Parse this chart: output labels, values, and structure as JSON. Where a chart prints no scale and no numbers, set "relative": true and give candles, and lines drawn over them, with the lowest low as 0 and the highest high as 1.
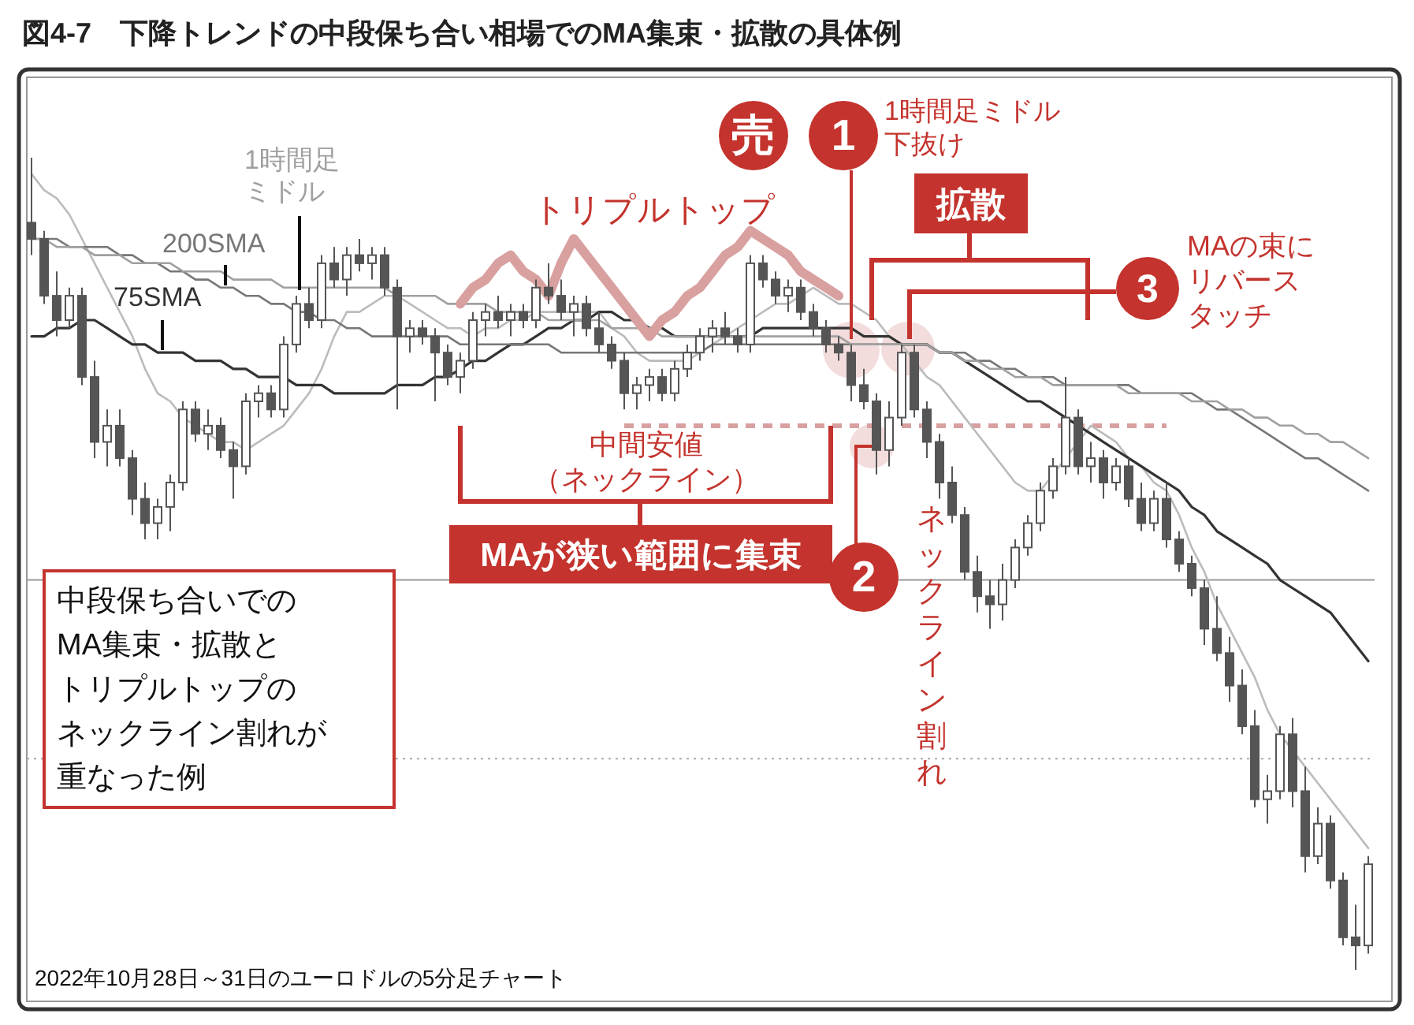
{
  "chart_data": {
    "type": "candlestick",
    "relative": true,
    "title": "図4-7　下降トレンドの中段保ち合い相場でのMA集束・拡散の具体例",
    "color": "#555555",
    "categories": [
      null,
      null,
      null,
      null,
      null,
      null,
      null,
      null,
      null,
      null,
      null,
      null,
      null,
      null,
      null,
      null,
      null,
      null,
      null,
      null,
      null,
      null,
      null,
      null,
      null,
      null,
      null,
      null,
      null,
      null,
      null,
      null,
      null,
      null,
      null,
      null,
      null,
      null,
      null,
      null,
      null,
      null,
      null,
      null,
      null,
      null,
      null,
      null,
      null,
      null,
      null,
      null,
      null,
      null,
      null,
      null,
      null,
      null,
      null,
      null,
      null,
      null,
      null,
      null,
      null,
      null,
      null,
      null,
      null,
      null,
      null,
      null,
      null,
      null,
      null,
      null,
      null,
      null,
      null,
      null,
      null,
      null,
      null,
      null,
      null,
      null,
      null,
      null,
      null,
      null,
      null,
      null,
      null,
      null,
      null,
      null,
      null,
      null,
      null,
      null,
      null,
      null,
      null,
      null,
      null,
      null,
      null
    ],
    "ohlc": [
      [
        0.92,
        1.0,
        0.88,
        0.9
      ],
      [
        0.9,
        0.91,
        0.82,
        0.83
      ],
      [
        0.83,
        0.86,
        0.78,
        0.8
      ],
      [
        0.8,
        0.84,
        0.79,
        0.83
      ],
      [
        0.83,
        0.84,
        0.72,
        0.73
      ],
      [
        0.73,
        0.75,
        0.63,
        0.65
      ],
      [
        0.65,
        0.69,
        0.62,
        0.67
      ],
      [
        0.67,
        0.69,
        0.62,
        0.63
      ],
      [
        0.63,
        0.64,
        0.56,
        0.58
      ],
      [
        0.58,
        0.6,
        0.53,
        0.55
      ],
      [
        0.55,
        0.58,
        0.53,
        0.57
      ],
      [
        0.57,
        0.61,
        0.54,
        0.6
      ],
      [
        0.6,
        0.7,
        0.59,
        0.69
      ],
      [
        0.69,
        0.7,
        0.65,
        0.66
      ],
      [
        0.66,
        0.69,
        0.64,
        0.67
      ],
      [
        0.67,
        0.68,
        0.63,
        0.64
      ],
      [
        0.64,
        0.65,
        0.58,
        0.62
      ],
      [
        0.62,
        0.71,
        0.61,
        0.7
      ],
      [
        0.7,
        0.72,
        0.68,
        0.71
      ],
      [
        0.71,
        0.72,
        0.68,
        0.69
      ],
      [
        0.69,
        0.78,
        0.68,
        0.77
      ],
      [
        0.77,
        0.83,
        0.76,
        0.82
      ],
      [
        0.82,
        0.84,
        0.79,
        0.8
      ],
      [
        0.8,
        0.88,
        0.79,
        0.87
      ],
      [
        0.87,
        0.89,
        0.84,
        0.85
      ],
      [
        0.85,
        0.89,
        0.83,
        0.88
      ],
      [
        0.88,
        0.9,
        0.86,
        0.87
      ],
      [
        0.87,
        0.89,
        0.85,
        0.88
      ],
      [
        0.88,
        0.89,
        0.83,
        0.84
      ],
      [
        0.84,
        0.85,
        0.69,
        0.78
      ],
      [
        0.78,
        0.8,
        0.76,
        0.79
      ],
      [
        0.79,
        0.8,
        0.77,
        0.78
      ],
      [
        0.78,
        0.79,
        0.7,
        0.76
      ],
      [
        0.76,
        0.77,
        0.72,
        0.73
      ],
      [
        0.73,
        0.76,
        0.71,
        0.75
      ],
      [
        0.75,
        0.81,
        0.74,
        0.8
      ],
      [
        0.8,
        0.82,
        0.78,
        0.81
      ],
      [
        0.81,
        0.83,
        0.79,
        0.8
      ],
      [
        0.8,
        0.82,
        0.78,
        0.81
      ],
      [
        0.81,
        0.82,
        0.79,
        0.8
      ],
      [
        0.8,
        0.85,
        0.79,
        0.84
      ],
      [
        0.84,
        0.87,
        0.82,
        0.83
      ],
      [
        0.83,
        0.85,
        0.8,
        0.81
      ],
      [
        0.81,
        0.83,
        0.78,
        0.82
      ],
      [
        0.82,
        0.83,
        0.78,
        0.79
      ],
      [
        0.79,
        0.81,
        0.76,
        0.77
      ],
      [
        0.77,
        0.78,
        0.74,
        0.75
      ],
      [
        0.75,
        0.76,
        0.69,
        0.71
      ],
      [
        0.71,
        0.73,
        0.69,
        0.72
      ],
      [
        0.72,
        0.74,
        0.7,
        0.73
      ],
      [
        0.73,
        0.74,
        0.7,
        0.71
      ],
      [
        0.71,
        0.75,
        0.7,
        0.74
      ],
      [
        0.74,
        0.77,
        0.73,
        0.76
      ],
      [
        0.76,
        0.79,
        0.75,
        0.78
      ],
      [
        0.78,
        0.8,
        0.76,
        0.79
      ],
      [
        0.79,
        0.81,
        0.77,
        0.78
      ],
      [
        0.78,
        0.79,
        0.76,
        0.77
      ],
      [
        0.77,
        0.88,
        0.76,
        0.87
      ],
      [
        0.87,
        0.88,
        0.84,
        0.85
      ],
      [
        0.85,
        0.86,
        0.82,
        0.83
      ],
      [
        0.83,
        0.85,
        0.81,
        0.84
      ],
      [
        0.84,
        0.85,
        0.8,
        0.81
      ],
      [
        0.81,
        0.82,
        0.78,
        0.79
      ],
      [
        0.79,
        0.8,
        0.76,
        0.77
      ],
      [
        0.77,
        0.78,
        0.75,
        0.76
      ],
      [
        0.76,
        0.77,
        0.7,
        0.72
      ],
      [
        0.72,
        0.74,
        0.69,
        0.7
      ],
      [
        0.7,
        0.71,
        0.61,
        0.64
      ],
      [
        0.64,
        0.7,
        0.62,
        0.68
      ],
      [
        0.68,
        0.77,
        0.67,
        0.76
      ],
      [
        0.76,
        0.77,
        0.68,
        0.69
      ],
      [
        0.69,
        0.7,
        0.63,
        0.65
      ],
      [
        0.65,
        0.66,
        0.58,
        0.6
      ],
      [
        0.6,
        0.62,
        0.55,
        0.56
      ],
      [
        0.56,
        0.57,
        0.48,
        0.49
      ],
      [
        0.49,
        0.51,
        0.44,
        0.46
      ],
      [
        0.46,
        0.48,
        0.42,
        0.45
      ],
      [
        0.45,
        0.5,
        0.43,
        0.48
      ],
      [
        0.48,
        0.53,
        0.47,
        0.52
      ],
      [
        0.52,
        0.56,
        0.51,
        0.55
      ],
      [
        0.55,
        0.6,
        0.54,
        0.59
      ],
      [
        0.59,
        0.63,
        0.58,
        0.62
      ],
      [
        0.62,
        0.73,
        0.61,
        0.68
      ],
      [
        0.68,
        0.69,
        0.61,
        0.62
      ],
      [
        0.62,
        0.65,
        0.6,
        0.63
      ],
      [
        0.63,
        0.64,
        0.58,
        0.6
      ],
      [
        0.6,
        0.63,
        0.59,
        0.62
      ],
      [
        0.62,
        0.63,
        0.57,
        0.58
      ],
      [
        0.58,
        0.6,
        0.54,
        0.55
      ],
      [
        0.55,
        0.59,
        0.54,
        0.58
      ],
      [
        0.58,
        0.6,
        0.52,
        0.53
      ],
      [
        0.53,
        0.54,
        0.49,
        0.5
      ],
      [
        0.5,
        0.51,
        0.46,
        0.47
      ],
      [
        0.47,
        0.48,
        0.4,
        0.42
      ],
      [
        0.42,
        0.46,
        0.38,
        0.39
      ],
      [
        0.39,
        0.41,
        0.33,
        0.35
      ],
      [
        0.35,
        0.37,
        0.29,
        0.3
      ],
      [
        0.3,
        0.32,
        0.2,
        0.21
      ],
      [
        0.21,
        0.24,
        0.18,
        0.22
      ],
      [
        0.22,
        0.3,
        0.21,
        0.29
      ],
      [
        0.29,
        0.31,
        0.2,
        0.22
      ],
      [
        0.22,
        0.25,
        0.12,
        0.14
      ],
      [
        0.14,
        0.2,
        0.13,
        0.18
      ],
      [
        0.18,
        0.19,
        0.1,
        0.11
      ],
      [
        0.11,
        0.12,
        0.03,
        0.04
      ],
      [
        0.04,
        0.08,
        0.0,
        0.03
      ],
      [
        0.03,
        0.14,
        0.02,
        0.13
      ]
    ],
    "series": [
      {
        "type": "line",
        "color": "#bbbbbb",
        "values": [
          0.98,
          0.96,
          0.95,
          0.93,
          0.9,
          0.87,
          0.84,
          0.81,
          0.78,
          0.74,
          0.71,
          0.7,
          0.68,
          0.67,
          0.66,
          0.65,
          0.65,
          0.64,
          0.65,
          0.66,
          0.67,
          0.69,
          0.71,
          0.74,
          0.78,
          0.81,
          0.81,
          0.82,
          0.83,
          0.83,
          0.82,
          0.81,
          0.8,
          0.79,
          0.79,
          0.78,
          0.79,
          0.79,
          0.8,
          0.8,
          0.81,
          0.81,
          0.81,
          0.81,
          0.81,
          0.81,
          0.79,
          0.78,
          0.76,
          0.75,
          0.75,
          0.75,
          0.75,
          0.76,
          0.77,
          0.78,
          0.79,
          0.8,
          0.81,
          0.82,
          0.82,
          0.83,
          0.84,
          0.83,
          0.82,
          0.82,
          0.81,
          0.8,
          0.78,
          0.77,
          0.75,
          0.73,
          0.72,
          0.7,
          0.68,
          0.66,
          0.64,
          0.62,
          0.6,
          0.59,
          0.59,
          0.61,
          0.63,
          0.65,
          0.67,
          0.66,
          0.65,
          0.63,
          0.62,
          0.6,
          0.59,
          0.56,
          0.52,
          0.49,
          0.45,
          0.42,
          0.39,
          0.36,
          0.32,
          0.29,
          0.27,
          0.25,
          0.23,
          0.21,
          0.19,
          0.17,
          0.15
        ]
      },
      {
        "type": "line",
        "name": "75SMA",
        "color": "#333333",
        "values": [
          0.78,
          0.78,
          0.79,
          0.79,
          0.8,
          0.8,
          0.79,
          0.78,
          0.77,
          0.77,
          0.76,
          0.76,
          0.76,
          0.75,
          0.75,
          0.75,
          0.74,
          0.74,
          0.73,
          0.73,
          0.73,
          0.72,
          0.72,
          0.72,
          0.71,
          0.71,
          0.71,
          0.71,
          0.71,
          0.72,
          0.72,
          0.72,
          0.73,
          0.73,
          0.74,
          0.75,
          0.75,
          0.76,
          0.77,
          0.77,
          0.78,
          0.79,
          0.79,
          0.8,
          0.8,
          0.81,
          0.81,
          0.8,
          0.8,
          0.79,
          0.79,
          0.78,
          0.78,
          0.78,
          0.78,
          0.78,
          0.78,
          0.78,
          0.79,
          0.79,
          0.79,
          0.79,
          0.79,
          0.79,
          0.79,
          0.79,
          0.78,
          0.78,
          0.78,
          0.77,
          0.77,
          0.77,
          0.76,
          0.76,
          0.75,
          0.74,
          0.73,
          0.72,
          0.71,
          0.7,
          0.7,
          0.69,
          0.68,
          0.67,
          0.66,
          0.65,
          0.64,
          0.63,
          0.62,
          0.61,
          0.6,
          0.59,
          0.57,
          0.56,
          0.54,
          0.53,
          0.52,
          0.51,
          0.5,
          0.48,
          0.47,
          0.46,
          0.45,
          0.44,
          0.42,
          0.4,
          0.38
        ]
      },
      {
        "type": "line",
        "name": "200SMA",
        "color": "#777777",
        "values": [
          0.9,
          0.9,
          0.9,
          0.89,
          0.89,
          0.89,
          0.89,
          0.88,
          0.88,
          0.87,
          0.87,
          0.86,
          0.86,
          0.85,
          0.85,
          0.84,
          0.84,
          0.83,
          0.83,
          0.82,
          0.82,
          0.81,
          0.81,
          0.8,
          0.8,
          0.79,
          0.79,
          0.78,
          0.78,
          0.78,
          0.78,
          0.78,
          0.78,
          0.78,
          0.77,
          0.77,
          0.77,
          0.77,
          0.77,
          0.77,
          0.77,
          0.77,
          0.76,
          0.76,
          0.76,
          0.76,
          0.76,
          0.76,
          0.76,
          0.76,
          0.76,
          0.76,
          0.76,
          0.76,
          0.77,
          0.77,
          0.77,
          0.77,
          0.77,
          0.77,
          0.77,
          0.77,
          0.77,
          0.77,
          0.77,
          0.77,
          0.77,
          0.77,
          0.77,
          0.77,
          0.77,
          0.77,
          0.76,
          0.76,
          0.76,
          0.75,
          0.75,
          0.74,
          0.74,
          0.73,
          0.73,
          0.73,
          0.72,
          0.72,
          0.72,
          0.72,
          0.72,
          0.72,
          0.71,
          0.71,
          0.71,
          0.71,
          0.71,
          0.7,
          0.69,
          0.69,
          0.68,
          0.67,
          0.66,
          0.65,
          0.64,
          0.63,
          0.63,
          0.62,
          0.61,
          0.6,
          0.59
        ]
      },
      {
        "type": "line",
        "name": "1時間足ミドル",
        "color": "#a0a0a0",
        "values": [
          0.9,
          0.9,
          0.89,
          0.89,
          0.89,
          0.88,
          0.88,
          0.88,
          0.87,
          0.87,
          0.87,
          0.87,
          0.86,
          0.86,
          0.86,
          0.86,
          0.85,
          0.85,
          0.85,
          0.85,
          0.84,
          0.84,
          0.84,
          0.84,
          0.84,
          0.84,
          0.84,
          0.84,
          0.84,
          0.83,
          0.83,
          0.83,
          0.83,
          0.82,
          0.82,
          0.82,
          0.82,
          0.81,
          0.81,
          0.81,
          0.81,
          0.8,
          0.8,
          0.8,
          0.8,
          0.8,
          0.79,
          0.79,
          0.79,
          0.79,
          0.78,
          0.78,
          0.78,
          0.78,
          0.78,
          0.78,
          0.78,
          0.78,
          0.78,
          0.78,
          0.78,
          0.78,
          0.78,
          0.78,
          0.78,
          0.77,
          0.77,
          0.77,
          0.77,
          0.77,
          0.77,
          0.77,
          0.76,
          0.76,
          0.75,
          0.75,
          0.74,
          0.74,
          0.73,
          0.73,
          0.73,
          0.72,
          0.72,
          0.72,
          0.72,
          0.72,
          0.72,
          0.71,
          0.71,
          0.71,
          0.71,
          0.71,
          0.7,
          0.7,
          0.7,
          0.69,
          0.69,
          0.68,
          0.68,
          0.67,
          0.67,
          0.66,
          0.66,
          0.65,
          0.65,
          0.64,
          0.63
        ]
      },
      {
        "type": "line",
        "color": "#d9a0a0",
        "values": [
          null,
          null,
          null,
          null,
          null,
          null,
          null,
          null,
          null,
          null,
          null,
          null,
          null,
          null,
          null,
          null,
          null,
          null,
          null,
          null,
          null,
          null,
          null,
          null,
          null,
          null,
          null,
          null,
          null,
          null,
          null,
          null,
          null,
          null,
          0.82,
          0.84,
          0.85,
          0.87,
          0.88,
          0.86,
          0.85,
          0.83,
          0.87,
          0.9,
          0.88,
          0.86,
          0.84,
          0.82,
          0.8,
          0.78,
          0.8,
          0.81,
          0.83,
          0.84,
          0.86,
          0.88,
          0.89,
          0.91,
          0.9,
          0.89,
          0.88,
          0.86,
          0.85,
          0.84,
          0.83,
          null,
          null,
          null,
          null,
          null,
          null,
          null,
          null,
          null,
          null,
          null,
          null,
          null,
          null,
          null,
          null,
          null,
          null,
          null,
          null,
          null,
          null,
          null,
          null,
          null,
          null,
          null,
          null,
          null,
          null,
          null,
          null,
          null,
          null,
          null,
          null,
          null,
          null,
          null,
          null,
          null,
          null
        ]
      }
    ],
    "ref_lines": [
      {
        "axis": "y",
        "value": 0.67,
        "label": "中間安値（ネックライン）",
        "color": "#d9a0a0",
        "line_style": "dashed"
      },
      {
        "axis": "y",
        "value": 0.48,
        "color": "#999999",
        "line_style": "solid"
      },
      {
        "axis": "y",
        "value": 0.26,
        "color": "#aaaaaa",
        "line_style": "dotted"
      }
    ],
    "annotations": [
      "トリプルトップ",
      "売",
      "1",
      "1時間足ミドル下抜け",
      "拡散",
      "3",
      "MAの束にリバースタッチ",
      "MAが狭い範囲に集束",
      "2",
      "ネックライン割れ",
      "中段保ち合いでの",
      "MA集束・拡散と",
      "トリプルトップの",
      "ネックライン割れが",
      "重なった例",
      "2022年10月28日～31日のユーロドルの5分足チャート"
    ]
  }
}
